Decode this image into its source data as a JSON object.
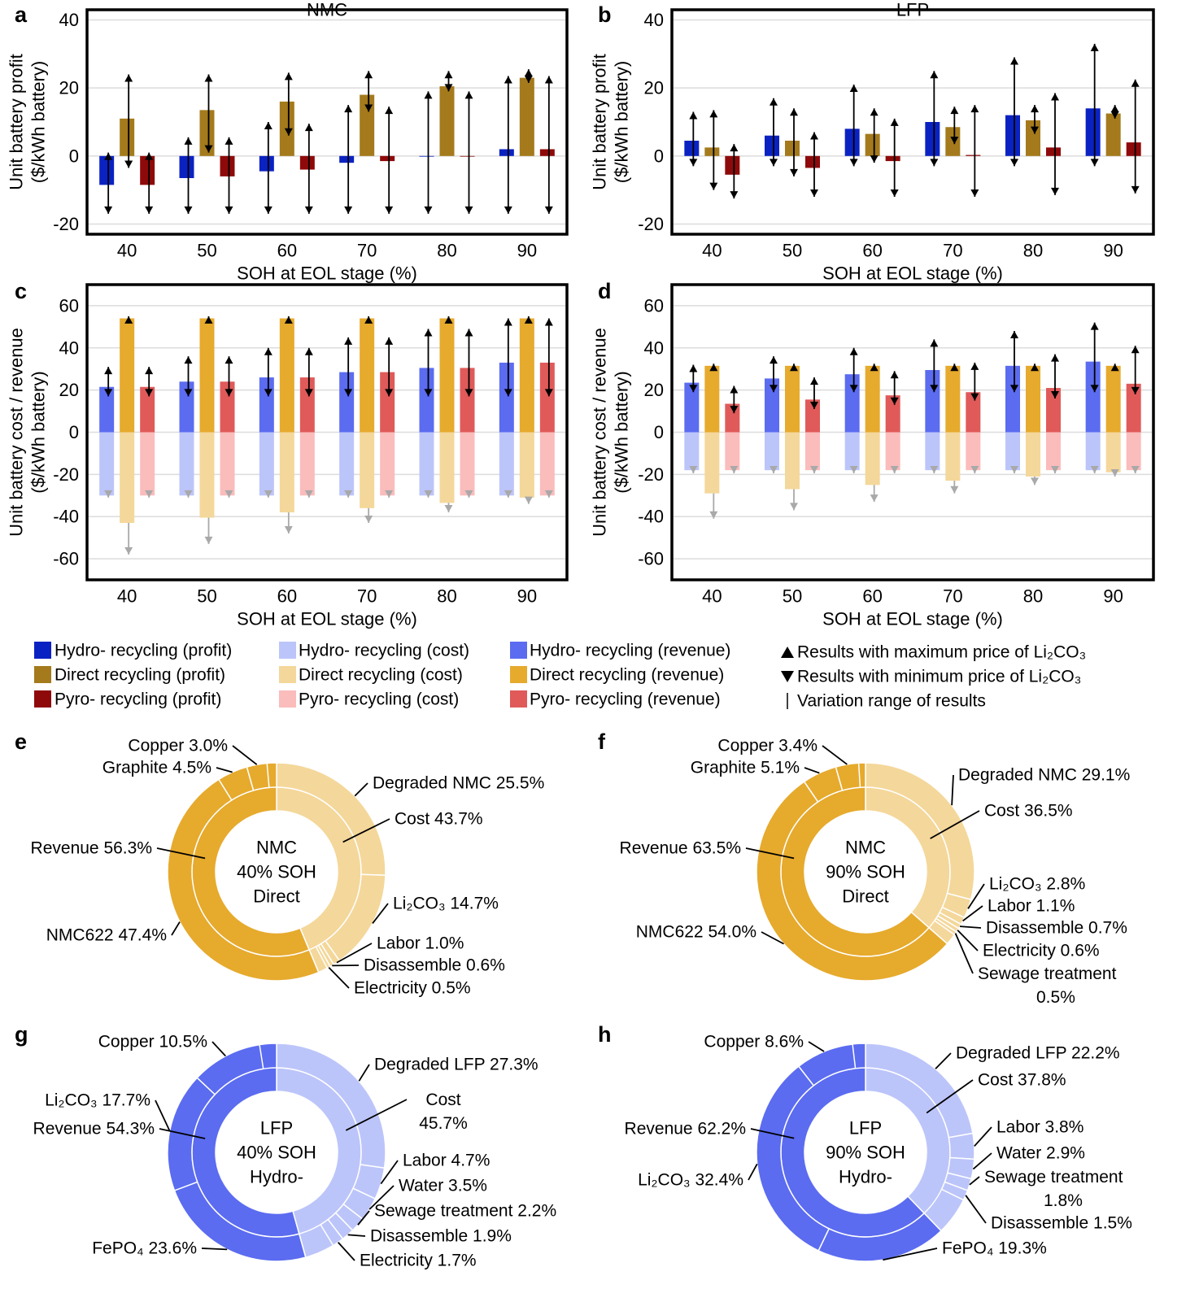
{
  "chart_data": [
    {
      "type": "bar",
      "panel": "a",
      "title": "NMC",
      "x_label": "SOH at EOL stage (%)",
      "y_label": [
        "Unit battery profit",
        "($/kWh battery)"
      ],
      "categories": [
        40,
        50,
        60,
        70,
        80,
        90
      ],
      "ylim": [
        -23,
        43
      ],
      "yticks": [
        -20,
        0,
        20,
        40
      ],
      "grid": true,
      "series": [
        {
          "name": "Hydro- recycling (profit)",
          "color": "#0b22c2",
          "values": [
            -8.5,
            -6.5,
            -4.5,
            -2,
            0,
            2
          ],
          "high": [
            1,
            5.5,
            10,
            15,
            19,
            23.5
          ],
          "low": [
            -17,
            -17,
            -17,
            -17,
            -17,
            -17
          ]
        },
        {
          "name": "Direct recycling (profit)",
          "color": "#a47a1c",
          "values": [
            11,
            13.5,
            16,
            18,
            20.5,
            23
          ],
          "high": [
            24,
            24,
            24.5,
            25,
            25,
            25.5
          ],
          "low": [
            -3.5,
            1,
            6,
            13,
            19,
            21.5
          ]
        },
        {
          "name": "Pyro- recycling (profit)",
          "color": "#8e0a0a",
          "values": [
            -8.5,
            -6,
            -4,
            -1.5,
            0,
            2
          ],
          "high": [
            1,
            5.5,
            9.5,
            14.5,
            19,
            23.5
          ],
          "low": [
            -17,
            -17,
            -17,
            -17,
            -17,
            -17
          ]
        }
      ]
    },
    {
      "type": "bar",
      "panel": "b",
      "title": "LFP",
      "x_label": "SOH at EOL stage (%)",
      "y_label": [
        "Unit battery profit",
        "($/kWh battery)"
      ],
      "categories": [
        40,
        50,
        60,
        70,
        80,
        90
      ],
      "ylim": [
        -23,
        43
      ],
      "yticks": [
        -20,
        0,
        20,
        40
      ],
      "grid": true,
      "series": [
        {
          "name": "Hydro- recycling (profit)",
          "color": "#0b22c2",
          "values": [
            4.5,
            6,
            8,
            10,
            12,
            14
          ],
          "high": [
            13,
            17,
            21,
            25,
            29,
            33
          ],
          "low": [
            -3,
            -3,
            -3,
            -3,
            -3,
            -3
          ]
        },
        {
          "name": "Direct recycling (profit)",
          "color": "#a47a1c",
          "values": [
            2.5,
            4.5,
            6.5,
            8.5,
            10.5,
            12.5
          ],
          "high": [
            13.5,
            14,
            14,
            14.5,
            15,
            15
          ],
          "low": [
            -10,
            -6,
            -2,
            3.5,
            6.5,
            11
          ]
        },
        {
          "name": "Pyro- recycling (profit)",
          "color": "#8e0a0a",
          "values": [
            -5.5,
            -3.5,
            -1.5,
            0.3,
            2.5,
            4
          ],
          "high": [
            3.5,
            7,
            11,
            15,
            18.5,
            22.5
          ],
          "low": [
            -12.5,
            -12,
            -12,
            -12,
            -11.5,
            -11
          ]
        }
      ]
    },
    {
      "type": "bar",
      "panel": "c",
      "x_label": "SOH at EOL stage (%)",
      "y_label": [
        "Unit battery cost / revenue",
        "($/kWh battery)"
      ],
      "categories": [
        40,
        50,
        60,
        70,
        80,
        90
      ],
      "ylim": [
        -70,
        70
      ],
      "yticks": [
        -60,
        -40,
        -20,
        0,
        20,
        40,
        60
      ],
      "grid": true,
      "series": [
        {
          "name": "Hydro- recycling (revenue)",
          "color": "#5b6cf0",
          "values": [
            21.5,
            24,
            26,
            28.5,
            30.5,
            33
          ],
          "high": [
            31,
            36,
            40,
            45,
            49,
            54
          ],
          "low": [
            17,
            17,
            17,
            17,
            17,
            17
          ]
        },
        {
          "name": "Direct recycling (revenue)",
          "color": "#e6aa2d",
          "values": [
            54,
            54,
            54,
            54,
            54,
            54
          ],
          "high": [
            55,
            55,
            55,
            55,
            55,
            55
          ]
        },
        {
          "name": "Pyro- recycling (revenue)",
          "color": "#e05a5a",
          "values": [
            21.5,
            24,
            26,
            28.5,
            30.5,
            33
          ],
          "high": [
            31,
            36,
            40,
            45,
            49,
            54
          ],
          "low": [
            17,
            17,
            17,
            17,
            17,
            17
          ]
        },
        {
          "name": "Hydro- recycling (cost)",
          "color": "#bcc5fa",
          "values": [
            -30,
            -30,
            -30,
            -30,
            -30,
            -30
          ],
          "low": [
            -31,
            -31,
            -31,
            -31,
            -31,
            -31
          ]
        },
        {
          "name": "Direct recycling (cost)",
          "color": "#f4d79a",
          "values": [
            -43,
            -40.5,
            -38,
            -36,
            -33.5,
            -31
          ],
          "low": [
            -58,
            -53,
            -48,
            -43,
            -38,
            -34
          ]
        },
        {
          "name": "Pyro- recycling (cost)",
          "color": "#fbbcbc",
          "values": [
            -30,
            -30,
            -30,
            -30,
            -30,
            -30
          ],
          "low": [
            -31,
            -31,
            -31,
            -31,
            -31,
            -31
          ]
        }
      ]
    },
    {
      "type": "bar",
      "panel": "d",
      "x_label": "SOH at EOL stage (%)",
      "y_label": [
        "Unit battery cost / revenue",
        "($/kWh battery)"
      ],
      "categories": [
        40,
        50,
        60,
        70,
        80,
        90
      ],
      "ylim": [
        -70,
        70
      ],
      "yticks": [
        -60,
        -40,
        -20,
        0,
        20,
        40,
        60
      ],
      "grid": true,
      "series": [
        {
          "name": "Hydro- recycling (revenue)",
          "color": "#5b6cf0",
          "values": [
            23.5,
            25.5,
            27.5,
            29.5,
            31.5,
            33.5
          ],
          "high": [
            32,
            36,
            40,
            44,
            48,
            52
          ],
          "low": [
            19,
            19,
            19,
            19,
            19,
            19
          ]
        },
        {
          "name": "Direct recycling (revenue)",
          "color": "#e6aa2d",
          "values": [
            31.5,
            31.5,
            31.5,
            31.5,
            31.5,
            31.5
          ],
          "high": [
            32.5,
            32.5,
            32.5,
            32.5,
            32.5,
            32.5
          ]
        },
        {
          "name": "Pyro- recycling (revenue)",
          "color": "#e05a5a",
          "values": [
            13.5,
            15.5,
            17.5,
            19,
            21,
            23
          ],
          "high": [
            22,
            26,
            29,
            33,
            37,
            41
          ],
          "low": [
            9,
            11,
            13,
            15,
            16,
            18
          ]
        },
        {
          "name": "Hydro- recycling (cost)",
          "color": "#bcc5fa",
          "values": [
            -18,
            -18,
            -18,
            -18,
            -18,
            -18
          ],
          "low": [
            -19.5,
            -19.5,
            -19.5,
            -19.5,
            -19.5,
            -19.5
          ]
        },
        {
          "name": "Direct recycling (cost)",
          "color": "#f4d79a",
          "values": [
            -29,
            -27,
            -25,
            -23,
            -21,
            -19
          ],
          "low": [
            -41,
            -37,
            -33,
            -29,
            -25,
            -21
          ]
        },
        {
          "name": "Pyro- recycling (cost)",
          "color": "#fbbcbc",
          "values": [
            -18,
            -18,
            -18,
            -18,
            -18,
            -18
          ],
          "low": [
            -19.5,
            -19.5,
            -19.5,
            -19.5,
            -19.5,
            -19.5
          ]
        }
      ]
    },
    {
      "type": "sunburst",
      "panel": "e",
      "center_text": [
        "NMC",
        "40% SOH",
        "Direct"
      ],
      "rings": [
        {
          "label": "Cost 43.7%",
          "value": 43.7,
          "color": "#f4d79a",
          "children": [
            {
              "label": "Degraded NMC 25.5%",
              "value": 25.5
            },
            {
              "label": "Li₂CO₃ 14.7%",
              "value": 14.7
            },
            {
              "label": "Labor 1.0%",
              "value": 1.0
            },
            {
              "label": "Disassemble 0.6%",
              "value": 0.6
            },
            {
              "label": "Electricity 0.5%",
              "value": 0.5
            }
          ]
        },
        {
          "label": "Revenue 56.3%",
          "value": 56.3,
          "color": "#e6aa2d",
          "children": [
            {
              "label": "NMC622 47.4%",
              "value": 47.4
            },
            {
              "label": "Graphite 4.5%",
              "value": 4.5
            },
            {
              "label": "Copper 3.0%",
              "value": 3.0
            }
          ]
        }
      ]
    },
    {
      "type": "sunburst",
      "panel": "f",
      "center_text": [
        "NMC",
        "90% SOH",
        "Direct"
      ],
      "rings": [
        {
          "label": "Cost 36.5%",
          "value": 36.5,
          "color": "#f4d79a",
          "children": [
            {
              "label": "Degraded NMC 29.1%",
              "value": 29.1
            },
            {
              "label": "Li₂CO₃ 2.8%",
              "value": 2.8
            },
            {
              "label": "Labor 1.1%",
              "value": 1.1
            },
            {
              "label": "Disassemble 0.7%",
              "value": 0.7
            },
            {
              "label": "Electricity 0.6%",
              "value": 0.6
            },
            {
              "label": "Sewage treatment 0.5%",
              "value": 0.5
            }
          ]
        },
        {
          "label": "Revenue 63.5%",
          "value": 63.5,
          "color": "#e6aa2d",
          "children": [
            {
              "label": "NMC622 54.0%",
              "value": 54.0
            },
            {
              "label": "Graphite 5.1%",
              "value": 5.1
            },
            {
              "label": "Copper 3.4%",
              "value": 3.4
            }
          ]
        }
      ]
    },
    {
      "type": "sunburst",
      "panel": "g",
      "center_text": [
        "LFP",
        "40% SOH",
        "Hydro-"
      ],
      "rings": [
        {
          "label": "Cost 45.7%",
          "value": 45.7,
          "color": "#bcc5fa",
          "children": [
            {
              "label": "Degraded LFP 27.3%",
              "value": 27.3
            },
            {
              "label": "Labor 4.7%",
              "value": 4.7
            },
            {
              "label": "Water 3.5%",
              "value": 3.5
            },
            {
              "label": "Sewage treatment 2.2%",
              "value": 2.2
            },
            {
              "label": "Disassemble 1.9%",
              "value": 1.9
            },
            {
              "label": "Electricity 1.7%",
              "value": 1.7
            }
          ]
        },
        {
          "label": "Revenue 54.3%",
          "value": 54.3,
          "color": "#5b6cf0",
          "children": [
            {
              "label": "FePO₄ 23.6%",
              "value": 23.6
            },
            {
              "label": "Li₂CO₃ 17.7%",
              "value": 17.7
            },
            {
              "label": "Copper 10.5%",
              "value": 10.5
            }
          ]
        }
      ]
    },
    {
      "type": "sunburst",
      "panel": "h",
      "center_text": [
        "LFP",
        "90% SOH",
        "Hydro-"
      ],
      "rings": [
        {
          "label": "Cost 37.8%",
          "value": 37.8,
          "color": "#bcc5fa",
          "children": [
            {
              "label": "Degraded LFP 22.2%",
              "value": 22.2
            },
            {
              "label": "Labor 3.8%",
              "value": 3.8
            },
            {
              "label": "Water 2.9%",
              "value": 2.9
            },
            {
              "label": "Sewage treatment 1.8%",
              "value": 1.8
            },
            {
              "label": "Disassemble 1.5%",
              "value": 1.5
            }
          ]
        },
        {
          "label": "Revenue 62.2%",
          "value": 62.2,
          "color": "#5b6cf0",
          "children": [
            {
              "label": "FePO₄ 19.3%",
              "value": 19.3
            },
            {
              "label": "Li₂CO₃ 32.4%",
              "value": 32.4
            },
            {
              "label": "Copper 8.6%",
              "value": 8.6
            }
          ]
        }
      ]
    }
  ],
  "legend_notes": [
    "Results with maximum price of Li₂CO₃",
    "Results with minimum price of Li₂CO₃",
    "Variation range of results"
  ]
}
